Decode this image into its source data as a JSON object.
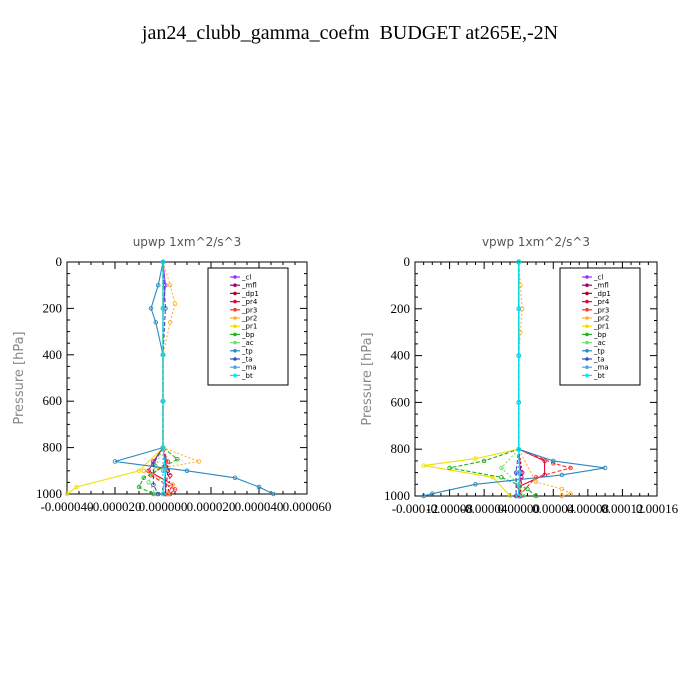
{
  "title": "jan24_clubb_gamma_coefm  BUDGET at265E,-2N",
  "chart_data": [
    {
      "type": "line",
      "title": "upwp   1xm^2/s^3",
      "ylabel": "Pressure [hPa]",
      "ylim": [
        1000,
        0
      ],
      "yticks": [
        "0",
        "200",
        "400",
        "600",
        "800",
        "1000"
      ],
      "xlim": [
        -4e-05,
        6e-05
      ],
      "xticks": [
        "-0.000040",
        "-0.000020",
        "0.000000",
        "0.000020",
        "0.000040",
        "0.000060"
      ],
      "legend_position": "top-right",
      "series": [
        {
          "name": "_cl",
          "color": "#9b30ff",
          "values": [
            [
              0,
              0
            ],
            [
              1e-06,
              100
            ],
            [
              0,
              200
            ],
            [
              0,
              400
            ],
            [
              0,
              600
            ],
            [
              0,
              800
            ],
            [
              1e-06,
              880
            ],
            [
              1e-06,
              1000
            ]
          ]
        },
        {
          "name": "_mfl",
          "color": "#a0006e",
          "values": [
            [
              0,
              0
            ],
            [
              0,
              200
            ],
            [
              0,
              400
            ],
            [
              0,
              600
            ],
            [
              0,
              800
            ],
            [
              2e-06,
              900
            ],
            [
              1e-06,
              1000
            ]
          ]
        },
        {
          "name": "_dp1",
          "color": "#c0001e",
          "values": [
            [
              0,
              0
            ],
            [
              0,
              200
            ],
            [
              0,
              400
            ],
            [
              0,
              600
            ],
            [
              0,
              800
            ],
            [
              3e-06,
              920
            ],
            [
              2e-06,
              1000
            ]
          ]
        },
        {
          "name": "_pr4",
          "color": "#e8003a",
          "values": [
            [
              0,
              0
            ],
            [
              0,
              200
            ],
            [
              0,
              400
            ],
            [
              0,
              600
            ],
            [
              0,
              800
            ],
            [
              -4e-06,
              860
            ],
            [
              -6e-06,
              900
            ],
            [
              4e-06,
              960
            ],
            [
              2e-06,
              1000
            ]
          ]
        },
        {
          "name": "_pr3",
          "color": "#ff3030",
          "values": [
            [
              0,
              0
            ],
            [
              0,
              200
            ],
            [
              0,
              400
            ],
            [
              0,
              600
            ],
            [
              0,
              800
            ],
            [
              2e-06,
              860
            ],
            [
              -5e-06,
              920
            ],
            [
              5e-06,
              980
            ],
            [
              3e-06,
              1000
            ]
          ]
        },
        {
          "name": "_pr2",
          "color": "#ffb030",
          "values": [
            [
              0,
              0
            ],
            [
              3e-06,
              100
            ],
            [
              5e-06,
              180
            ],
            [
              3e-06,
              260
            ],
            [
              0,
              400
            ],
            [
              0,
              600
            ],
            [
              0,
              800
            ],
            [
              1.5e-05,
              860
            ],
            [
              -8e-06,
              900
            ],
            [
              4e-06,
              960
            ],
            [
              2e-06,
              1000
            ]
          ]
        },
        {
          "name": "_pr1",
          "color": "#f0e000",
          "values": [
            [
              0,
              0
            ],
            [
              0,
              200
            ],
            [
              0,
              400
            ],
            [
              0,
              600
            ],
            [
              0,
              800
            ],
            [
              -1e-05,
              900
            ],
            [
              -3.6e-05,
              970
            ],
            [
              -4e-05,
              1000
            ]
          ]
        },
        {
          "name": "_bp",
          "color": "#20b020",
          "values": [
            [
              0,
              0
            ],
            [
              0,
              200
            ],
            [
              0,
              400
            ],
            [
              0,
              600
            ],
            [
              0,
              800
            ],
            [
              6e-06,
              850
            ],
            [
              -8e-06,
              930
            ],
            [
              -1e-05,
              970
            ],
            [
              -4e-06,
              1000
            ]
          ]
        },
        {
          "name": "_ac",
          "color": "#70e070",
          "values": [
            [
              0,
              0
            ],
            [
              0,
              200
            ],
            [
              0,
              400
            ],
            [
              0,
              600
            ],
            [
              0,
              800
            ],
            [
              -3e-06,
              880
            ],
            [
              -6e-06,
              950
            ],
            [
              -3e-06,
              1000
            ]
          ]
        },
        {
          "name": "_tp",
          "color": "#2a8ac0",
          "values": [
            [
              0,
              0
            ],
            [
              -2e-06,
              100
            ],
            [
              -5e-06,
              200
            ],
            [
              -3e-06,
              260
            ],
            [
              0,
              400
            ],
            [
              0,
              600
            ],
            [
              0,
              800
            ],
            [
              -2e-05,
              860
            ],
            [
              1e-05,
              900
            ],
            [
              3e-05,
              930
            ],
            [
              4e-05,
              970
            ],
            [
              4.6e-05,
              1000
            ]
          ]
        },
        {
          "name": "_ta",
          "color": "#3050c0",
          "values": [
            [
              0,
              0
            ],
            [
              1e-06,
              200
            ],
            [
              0,
              400
            ],
            [
              0,
              600
            ],
            [
              0,
              800
            ],
            [
              -4e-06,
              870
            ],
            [
              -4e-06,
              960
            ],
            [
              -2e-06,
              1000
            ]
          ]
        },
        {
          "name": "_ma",
          "color": "#50a8e8",
          "values": [
            [
              0,
              0
            ],
            [
              0,
              200
            ],
            [
              0,
              400
            ],
            [
              0,
              600
            ],
            [
              0,
              800
            ],
            [
              0,
              900
            ],
            [
              0,
              1000
            ]
          ]
        },
        {
          "name": "_bt",
          "color": "#00e8e8",
          "values": [
            [
              0,
              0
            ],
            [
              0,
              200
            ],
            [
              0,
              400
            ],
            [
              0,
              600
            ],
            [
              0,
              800
            ],
            [
              1e-06,
              900
            ],
            [
              0,
              1000
            ]
          ]
        }
      ]
    },
    {
      "type": "line",
      "title": "vpwp   1xm^2/s^3",
      "ylabel": "Pressure [hPa]",
      "ylim": [
        1000,
        0
      ],
      "yticks": [
        "0",
        "200",
        "400",
        "600",
        "800",
        "1000"
      ],
      "xlim": [
        -0.00012,
        0.00016
      ],
      "xticks": [
        "-0.00012",
        "-0.00008",
        "-0.00004",
        "0.00000",
        "0.00004",
        "0.00008",
        "0.00012",
        "0.00016"
      ],
      "legend_position": "top-right",
      "series": [
        {
          "name": "_cl",
          "color": "#9b30ff",
          "values": [
            [
              0,
              0
            ],
            [
              0,
              200
            ],
            [
              0,
              400
            ],
            [
              0,
              600
            ],
            [
              0,
              800
            ],
            [
              2e-06,
              900
            ],
            [
              0,
              1000
            ]
          ]
        },
        {
          "name": "_mfl",
          "color": "#a0006e",
          "values": [
            [
              0,
              0
            ],
            [
              0,
              200
            ],
            [
              0,
              400
            ],
            [
              0,
              600
            ],
            [
              0,
              800
            ],
            [
              3e-06,
              920
            ],
            [
              1e-06,
              1000
            ]
          ]
        },
        {
          "name": "_dp1",
          "color": "#c0001e",
          "values": [
            [
              0,
              0
            ],
            [
              0,
              200
            ],
            [
              0,
              400
            ],
            [
              0,
              600
            ],
            [
              0,
              800
            ],
            [
              4e-06,
              900
            ],
            [
              2e-06,
              1000
            ]
          ]
        },
        {
          "name": "_pr4",
          "color": "#e8003a",
          "values": [
            [
              0,
              0
            ],
            [
              0,
              200
            ],
            [
              0,
              400
            ],
            [
              0,
              600
            ],
            [
              0,
              800
            ],
            [
              3e-05,
              850
            ],
            [
              3e-05,
              910
            ],
            [
              0,
              960
            ],
            [
              0,
              1000
            ]
          ]
        },
        {
          "name": "_pr3",
          "color": "#ff3030",
          "values": [
            [
              0,
              0
            ],
            [
              0,
              200
            ],
            [
              0,
              400
            ],
            [
              0,
              600
            ],
            [
              0,
              800
            ],
            [
              4e-05,
              860
            ],
            [
              6e-05,
              880
            ],
            [
              2e-05,
              920
            ],
            [
              0,
              1000
            ]
          ]
        },
        {
          "name": "_pr2",
          "color": "#ffb030",
          "values": [
            [
              0,
              0
            ],
            [
              2e-06,
              100
            ],
            [
              4e-06,
              200
            ],
            [
              2e-06,
              300
            ],
            [
              0,
              400
            ],
            [
              0,
              600
            ],
            [
              0,
              800
            ],
            [
              2e-05,
              940
            ],
            [
              5e-05,
              970
            ],
            [
              6e-05,
              990
            ],
            [
              5e-05,
              1000
            ]
          ]
        },
        {
          "name": "_pr1",
          "color": "#f0e000",
          "values": [
            [
              0,
              0
            ],
            [
              0,
              200
            ],
            [
              0,
              400
            ],
            [
              0,
              600
            ],
            [
              0,
              800
            ],
            [
              -5e-05,
              840
            ],
            [
              -0.00011,
              870
            ],
            [
              -3e-05,
              920
            ],
            [
              -1e-05,
              1000
            ]
          ]
        },
        {
          "name": "_bp",
          "color": "#20b020",
          "values": [
            [
              0,
              0
            ],
            [
              0,
              200
            ],
            [
              0,
              400
            ],
            [
              0,
              600
            ],
            [
              0,
              800
            ],
            [
              -4e-05,
              850
            ],
            [
              -8e-05,
              880
            ],
            [
              -2e-05,
              920
            ],
            [
              1e-05,
              970
            ],
            [
              2e-05,
              1000
            ]
          ]
        },
        {
          "name": "_ac",
          "color": "#70e070",
          "values": [
            [
              0,
              0
            ],
            [
              0,
              200
            ],
            [
              0,
              400
            ],
            [
              0,
              600
            ],
            [
              0,
              800
            ],
            [
              -2e-05,
              880
            ],
            [
              0,
              950
            ],
            [
              5e-06,
              1000
            ]
          ]
        },
        {
          "name": "_tp",
          "color": "#2a8ac0",
          "values": [
            [
              0,
              0
            ],
            [
              0,
              200
            ],
            [
              0,
              400
            ],
            [
              0,
              600
            ],
            [
              0,
              800
            ],
            [
              4e-05,
              850
            ],
            [
              0.0001,
              880
            ],
            [
              5e-05,
              910
            ],
            [
              -5e-05,
              950
            ],
            [
              -0.0001,
              990
            ],
            [
              -0.00011,
              1000
            ]
          ]
        },
        {
          "name": "_ta",
          "color": "#3050c0",
          "values": [
            [
              0,
              0
            ],
            [
              0,
              200
            ],
            [
              0,
              400
            ],
            [
              0,
              600
            ],
            [
              0,
              800
            ],
            [
              -3e-06,
              900
            ],
            [
              -3e-06,
              1000
            ]
          ]
        },
        {
          "name": "_ma",
          "color": "#50a8e8",
          "values": [
            [
              0,
              0
            ],
            [
              0,
              200
            ],
            [
              0,
              400
            ],
            [
              0,
              600
            ],
            [
              0,
              800
            ],
            [
              0,
              900
            ],
            [
              0,
              1000
            ]
          ]
        },
        {
          "name": "_bt",
          "color": "#00e8e8",
          "values": [
            [
              0,
              0
            ],
            [
              0,
              200
            ],
            [
              0,
              400
            ],
            [
              0,
              600
            ],
            [
              0,
              800
            ],
            [
              1e-06,
              900
            ],
            [
              0,
              1000
            ]
          ]
        }
      ]
    }
  ]
}
